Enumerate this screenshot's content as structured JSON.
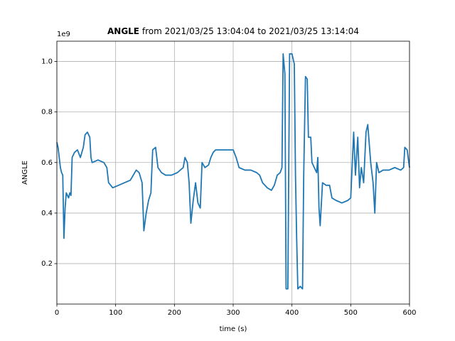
{
  "chart_data": {
    "type": "line",
    "title_parts": [
      "ANGLE",
      "from 2021/03/25 13:04:04 to 2021/03/25 13:14:04"
    ],
    "x_label": "time (s)",
    "y_label": "ANGLE",
    "y_offset_label": "1e9",
    "color": "#1f77b4",
    "grid": true,
    "xlim": [
      0,
      600
    ],
    "xticks": [
      0,
      100,
      200,
      300,
      400,
      500,
      600
    ],
    "ylim": [
      0.04,
      1.08
    ],
    "yticks": [
      0.2,
      0.4,
      0.6,
      0.8,
      {
        "value": 1,
        "label": "1.0"
      }
    ],
    "x": [
      0,
      2,
      4,
      6,
      8,
      10,
      12,
      14,
      16,
      18,
      20,
      22,
      24,
      26,
      30,
      35,
      40,
      45,
      48,
      52,
      56,
      58,
      60,
      70,
      80,
      85,
      88,
      95,
      105,
      115,
      125,
      130,
      135,
      140,
      145,
      148,
      152,
      156,
      160,
      163,
      168,
      172,
      178,
      185,
      195,
      205,
      215,
      218,
      222,
      225,
      228,
      232,
      236,
      240,
      244,
      247,
      252,
      258,
      262,
      266,
      270,
      285,
      300,
      305,
      310,
      320,
      330,
      340,
      345,
      350,
      358,
      365,
      370,
      375,
      380,
      383,
      385,
      388,
      390,
      393,
      396,
      400,
      404,
      406,
      408,
      410,
      414,
      418,
      420,
      423,
      426,
      428,
      432,
      434,
      438,
      442,
      444,
      446,
      448,
      452,
      458,
      464,
      468,
      475,
      485,
      495,
      500,
      505,
      508,
      512,
      515,
      518,
      522,
      526,
      529,
      534,
      538,
      541,
      544,
      548,
      555,
      565,
      575,
      585,
      590,
      592,
      596,
      600
    ],
    "values": [
      0.68,
      0.66,
      0.62,
      0.58,
      0.56,
      0.55,
      0.3,
      0.42,
      0.48,
      0.47,
      0.46,
      0.48,
      0.47,
      0.62,
      0.64,
      0.65,
      0.62,
      0.66,
      0.71,
      0.72,
      0.7,
      0.62,
      0.6,
      0.61,
      0.6,
      0.58,
      0.52,
      0.5,
      0.51,
      0.52,
      0.53,
      0.55,
      0.57,
      0.56,
      0.52,
      0.33,
      0.4,
      0.45,
      0.48,
      0.65,
      0.66,
      0.58,
      0.56,
      0.55,
      0.55,
      0.56,
      0.58,
      0.62,
      0.6,
      0.52,
      0.36,
      0.45,
      0.52,
      0.44,
      0.42,
      0.6,
      0.58,
      0.59,
      0.62,
      0.64,
      0.65,
      0.65,
      0.65,
      0.62,
      0.58,
      0.57,
      0.57,
      0.56,
      0.55,
      0.52,
      0.5,
      0.49,
      0.51,
      0.55,
      0.56,
      0.58,
      1.03,
      0.95,
      0.1,
      0.1,
      1.03,
      1.03,
      0.99,
      0.55,
      0.3,
      0.1,
      0.11,
      0.1,
      0.55,
      0.94,
      0.93,
      0.7,
      0.7,
      0.6,
      0.58,
      0.56,
      0.62,
      0.42,
      0.35,
      0.52,
      0.51,
      0.51,
      0.46,
      0.45,
      0.44,
      0.45,
      0.46,
      0.72,
      0.55,
      0.7,
      0.5,
      0.58,
      0.52,
      0.72,
      0.75,
      0.6,
      0.52,
      0.4,
      0.6,
      0.56,
      0.57,
      0.57,
      0.58,
      0.57,
      0.58,
      0.66,
      0.65,
      0.58
    ]
  }
}
